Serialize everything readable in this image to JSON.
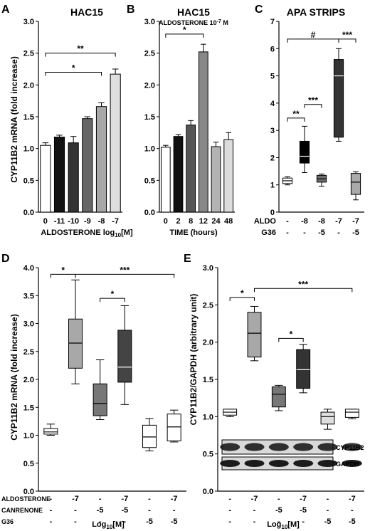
{
  "chart_data": [
    {
      "panel": "A",
      "type": "bar",
      "title": "HAC15",
      "ylabel": "CYP11B2 mRNA (fold increase)",
      "xlabel_main": "ALDOSTERONE log",
      "xlabel_sub": "10",
      "xlabel_end": "[M]",
      "ylim": [
        0,
        3.0
      ],
      "yticks": [
        "0.0",
        "0.5",
        "1.0",
        "1.5",
        "2.0",
        "2.5",
        "3.0"
      ],
      "categories": [
        "0",
        "-11",
        "-10",
        "-9",
        "-8",
        "-7"
      ],
      "values": [
        1.05,
        1.18,
        1.09,
        1.47,
        1.66,
        2.17
      ],
      "errors": [
        0.04,
        0.03,
        0.1,
        0.03,
        0.06,
        0.08
      ],
      "colors": [
        "#ffffff",
        "#111111",
        "#333333",
        "#666666",
        "#a8a8a8",
        "#dedede"
      ],
      "annotations": [
        {
          "text": "*",
          "from": 0,
          "to": 4,
          "y": 2.2
        },
        {
          "text": "**",
          "from": 0,
          "to": 5,
          "y": 2.5
        }
      ]
    },
    {
      "panel": "B",
      "type": "bar",
      "title": "HAC15",
      "subtitle": "ALDOSTERONE 10",
      "subtitle_sup": "-7",
      "subtitle_end": " M",
      "xlabel": "TIME (hours)",
      "ylim": [
        0,
        3.0
      ],
      "yticks": [
        "0.0",
        "0.5",
        "1.0",
        "1.5",
        "2.0",
        "2.5",
        "3.0"
      ],
      "categories": [
        "0",
        "2",
        "8",
        "12",
        "24",
        "48"
      ],
      "values": [
        1.02,
        1.19,
        1.37,
        2.52,
        1.03,
        1.14
      ],
      "errors": [
        0.03,
        0.03,
        0.07,
        0.12,
        0.07,
        0.11
      ],
      "colors": [
        "#ffffff",
        "#111111",
        "#555555",
        "#888888",
        "#b3b3b3",
        "#dcdcdc"
      ],
      "annotations": [
        {
          "text": "*",
          "from": 0,
          "to": 3,
          "y": 2.8
        }
      ]
    },
    {
      "panel": "C",
      "type": "box",
      "title": "APA STRIPS",
      "ylim": [
        0,
        7
      ],
      "yticks": [
        "0",
        "1",
        "2",
        "3",
        "4",
        "5",
        "6",
        "7"
      ],
      "row_labels": [
        "ALDO",
        "G36"
      ],
      "rows": [
        [
          "-",
          "-8",
          "-8",
          "-7",
          "-7"
        ],
        [
          "-",
          "-",
          "-5",
          "-",
          "-5"
        ]
      ],
      "boxes": [
        {
          "min": 1.0,
          "q1": 1.05,
          "median": 1.15,
          "q3": 1.25,
          "max": 1.3,
          "color": "#ffffff"
        },
        {
          "min": 1.45,
          "q1": 1.8,
          "median": 2.05,
          "q3": 2.6,
          "max": 3.15,
          "color": "#000000"
        },
        {
          "min": 0.95,
          "q1": 1.1,
          "median": 1.22,
          "q3": 1.35,
          "max": 1.4,
          "color": "#6e6e6e"
        },
        {
          "min": 2.6,
          "q1": 2.75,
          "median": 5.0,
          "q3": 5.6,
          "max": 6.0,
          "color": "#333333"
        },
        {
          "min": 0.45,
          "q1": 0.65,
          "median": 1.1,
          "q3": 1.42,
          "max": 1.48,
          "color": "#aaaaaa"
        }
      ],
      "annotations": [
        {
          "text": "**",
          "from": 0,
          "to": 1,
          "y": 3.45
        },
        {
          "text": "***",
          "from": 1,
          "to": 2,
          "y": 3.95
        },
        {
          "text": "#",
          "from": 0,
          "to": 3,
          "y": 6.35
        },
        {
          "text": "***",
          "from": 3,
          "to": 4,
          "y": 6.35
        }
      ]
    },
    {
      "panel": "D",
      "type": "box",
      "ylabel": "CYP11B2 mRNA (fold increase)",
      "ylim": [
        0,
        4.0
      ],
      "yticks": [
        "0.0",
        "0.5",
        "1.0",
        "1.5",
        "2.0",
        "2.5",
        "3.0",
        "3.5",
        "4.0"
      ],
      "row_labels": [
        "ALDOSTERONE",
        "CANRENONE",
        "G36"
      ],
      "rows": [
        [
          "-",
          "-7",
          "-",
          "-7",
          "-",
          "-7"
        ],
        [
          "-",
          "-",
          "-5",
          "-5",
          "-",
          "-"
        ],
        [
          "-",
          "-",
          "-",
          "-",
          "-5",
          "-5"
        ]
      ],
      "xlabel_main": "Log",
      "xlabel_sub": "10",
      "xlabel_end": "[M]",
      "boxes": [
        {
          "min": 1.0,
          "q1": 1.02,
          "median": 1.06,
          "q3": 1.12,
          "max": 1.2,
          "color": "#ffffff"
        },
        {
          "min": 1.92,
          "q1": 2.2,
          "median": 2.65,
          "q3": 3.08,
          "max": 3.78,
          "color": "#a8a8a8"
        },
        {
          "min": 1.28,
          "q1": 1.35,
          "median": 1.57,
          "q3": 1.92,
          "max": 2.35,
          "color": "#777777"
        },
        {
          "min": 1.55,
          "q1": 1.95,
          "median": 2.22,
          "q3": 2.88,
          "max": 3.32,
          "color": "#444444"
        },
        {
          "min": 0.72,
          "q1": 0.78,
          "median": 0.97,
          "q3": 1.18,
          "max": 1.3,
          "color": "#ffffff"
        },
        {
          "min": 0.88,
          "q1": 0.9,
          "median": 1.15,
          "q3": 1.38,
          "max": 1.45,
          "color": "#ffffff"
        }
      ],
      "annotations": [
        {
          "text": "*",
          "from": 0,
          "to": 1,
          "y": 3.88
        },
        {
          "text": "***",
          "from": 1,
          "to": 5,
          "y": 3.88
        },
        {
          "text": "*",
          "from": 2,
          "to": 3,
          "y": 3.45
        }
      ]
    },
    {
      "panel": "E",
      "type": "box",
      "ylabel": "CYP11B2/GAPDH (arbitrary unit)",
      "ylim": [
        0,
        3.0
      ],
      "yticks": [
        "0.0",
        "0.5",
        "1.0",
        "1.5",
        "2.0",
        "2.5",
        "3.0"
      ],
      "rows": [
        [
          "-",
          "-7",
          "-",
          "-7",
          "-",
          "-7"
        ],
        [
          "-",
          "-",
          "-5",
          "-5",
          "-",
          "-"
        ],
        [
          "-",
          "-",
          "-",
          "-",
          "-5",
          "-5"
        ]
      ],
      "xlabel_main": "Log",
      "xlabel_sub": "10",
      "xlabel_end": "[M]",
      "boxes": [
        {
          "min": 1.0,
          "q1": 1.02,
          "median": 1.06,
          "q3": 1.1,
          "max": 1.1,
          "color": "#ffffff"
        },
        {
          "min": 1.75,
          "q1": 1.8,
          "median": 2.12,
          "q3": 2.4,
          "max": 2.48,
          "color": "#a8a8a8"
        },
        {
          "min": 1.08,
          "q1": 1.13,
          "median": 1.3,
          "q3": 1.4,
          "max": 1.42,
          "color": "#777777"
        },
        {
          "min": 1.32,
          "q1": 1.38,
          "median": 1.63,
          "q3": 1.9,
          "max": 1.97,
          "color": "#333333"
        },
        {
          "min": 0.83,
          "q1": 0.9,
          "median": 1.0,
          "q3": 1.06,
          "max": 1.1,
          "color": "#dedede"
        },
        {
          "min": 0.97,
          "q1": 0.99,
          "median": 1.06,
          "q3": 1.1,
          "max": 1.1,
          "color": "#ffffff"
        }
      ],
      "blot_labels": [
        "CYP11B2",
        "GAPDH"
      ],
      "annotations": [
        {
          "text": "*",
          "from": 0,
          "to": 1,
          "y": 2.6
        },
        {
          "text": "***",
          "from": 1,
          "to": 5,
          "y": 2.72
        },
        {
          "text": "*",
          "from": 2,
          "to": 3,
          "y": 2.05
        }
      ]
    }
  ]
}
